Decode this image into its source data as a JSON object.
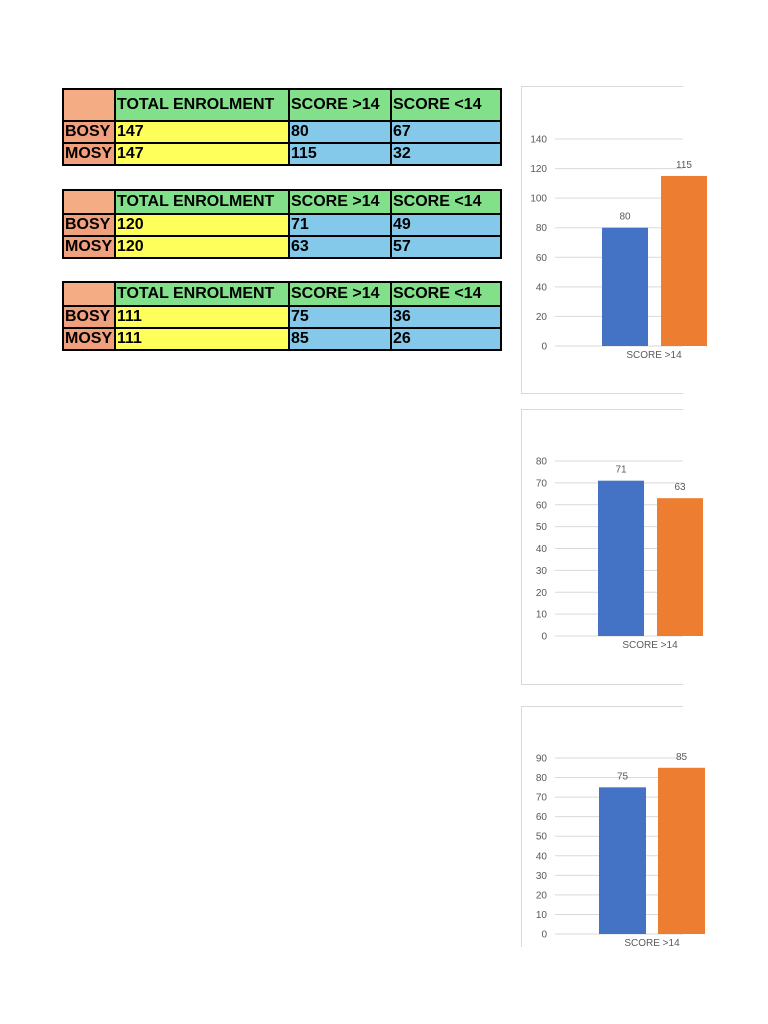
{
  "tables": [
    {
      "header": [
        "",
        "TOTAL ENROLMENT",
        "SCORE >14",
        "SCORE <14"
      ],
      "rows": [
        {
          "label": "BOSY",
          "total": "147",
          "above": "80",
          "below": "67"
        },
        {
          "label": "MOSY",
          "total": "147",
          "above": "115",
          "below": "32"
        }
      ]
    },
    {
      "header": [
        "",
        "TOTAL ENROLMENT",
        "SCORE >14",
        "SCORE <14"
      ],
      "rows": [
        {
          "label": "BOSY",
          "total": "120",
          "above": "71",
          "below": "49"
        },
        {
          "label": "MOSY",
          "total": "120",
          "above": "63",
          "below": "57"
        }
      ]
    },
    {
      "header": [
        "",
        "TOTAL ENROLMENT",
        "SCORE >14",
        "SCORE <14"
      ],
      "rows": [
        {
          "label": "BOSY",
          "total": "111",
          "above": "75",
          "below": "36"
        },
        {
          "label": "MOSY",
          "total": "111",
          "above": "85",
          "below": "26"
        }
      ]
    }
  ],
  "colors": {
    "bosy_bar": "#4472c4",
    "mosy_bar": "#ed7d31",
    "gridline": "#d9d9d9"
  },
  "chart_data": [
    {
      "type": "bar",
      "categories": [
        "SCORE >14"
      ],
      "series": [
        {
          "values": [
            80
          ],
          "data_label": "80"
        },
        {
          "values": [
            115
          ],
          "data_label": "115"
        }
      ],
      "ylim": [
        0,
        140
      ],
      "yticks": [
        "0",
        "20",
        "40",
        "60",
        "80",
        "100",
        "120",
        "140"
      ],
      "grid": true
    },
    {
      "type": "bar",
      "categories": [
        "SCORE >14"
      ],
      "series": [
        {
          "values": [
            71
          ],
          "data_label": "71"
        },
        {
          "values": [
            63
          ],
          "data_label": "63"
        }
      ],
      "ylim": [
        0,
        80
      ],
      "yticks": [
        "0",
        "10",
        "20",
        "30",
        "40",
        "50",
        "60",
        "70",
        "80"
      ],
      "grid": true
    },
    {
      "type": "bar",
      "categories": [
        "SCORE >14"
      ],
      "series": [
        {
          "values": [
            75
          ],
          "data_label": "75"
        },
        {
          "values": [
            85
          ],
          "data_label": "85"
        }
      ],
      "ylim": [
        0,
        90
      ],
      "yticks": [
        "0",
        "10",
        "20",
        "30",
        "40",
        "50",
        "60",
        "70",
        "80",
        "90"
      ],
      "grid": true
    }
  ]
}
